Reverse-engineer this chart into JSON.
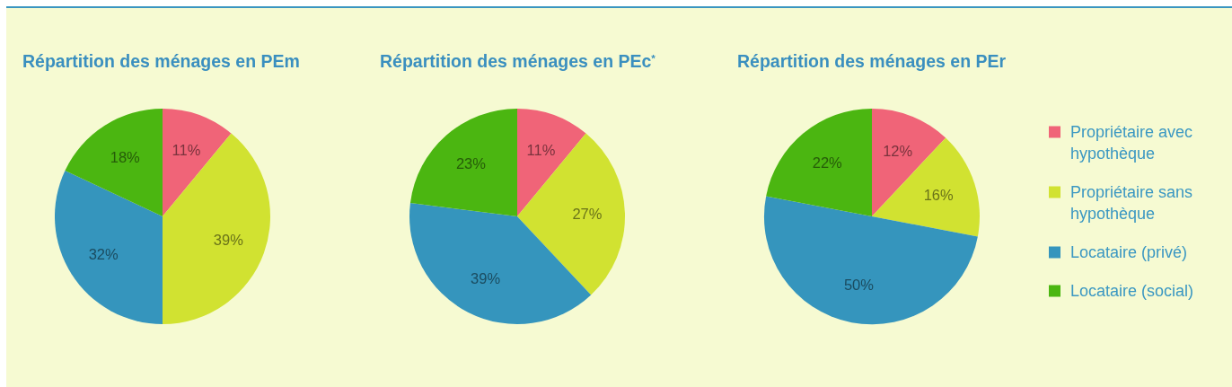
{
  "chart_data": [
    {
      "type": "pie",
      "title": "Répartition des ménages en PEm",
      "categories": [
        null,
        null,
        null,
        null
      ],
      "values": [
        11,
        39,
        32,
        18
      ],
      "value_labels": [
        "11%",
        "39%",
        "32%",
        "18%"
      ],
      "colors": [
        "#f06478",
        "#d1e231",
        "#3595bd",
        "#4bb611"
      ]
    },
    {
      "type": "pie",
      "title": "Répartition des ménages en PEc$^{*}$",
      "categories": [
        null,
        null,
        null,
        null
      ],
      "values": [
        11,
        27,
        39,
        23
      ],
      "value_labels": [
        "11%",
        "27%",
        "39%",
        "23%"
      ],
      "colors": [
        "#f06478",
        "#d1e231",
        "#3595bd",
        "#4bb611"
      ]
    },
    {
      "type": "pie",
      "title": "Répartition des ménages en PEr",
      "categories": [
        "Propriétaire avec hypothèque",
        "Propriétaire sans hypothèque",
        "Locataire (privé)",
        "Locataire (social)"
      ],
      "values": [
        12,
        16,
        50,
        22
      ],
      "value_labels": [
        "12%",
        "16%",
        "50%",
        "22%"
      ],
      "colors": [
        "#f06478",
        "#d1e231",
        "#3595bd",
        "#4bb611"
      ],
      "legend": "right"
    }
  ]
}
